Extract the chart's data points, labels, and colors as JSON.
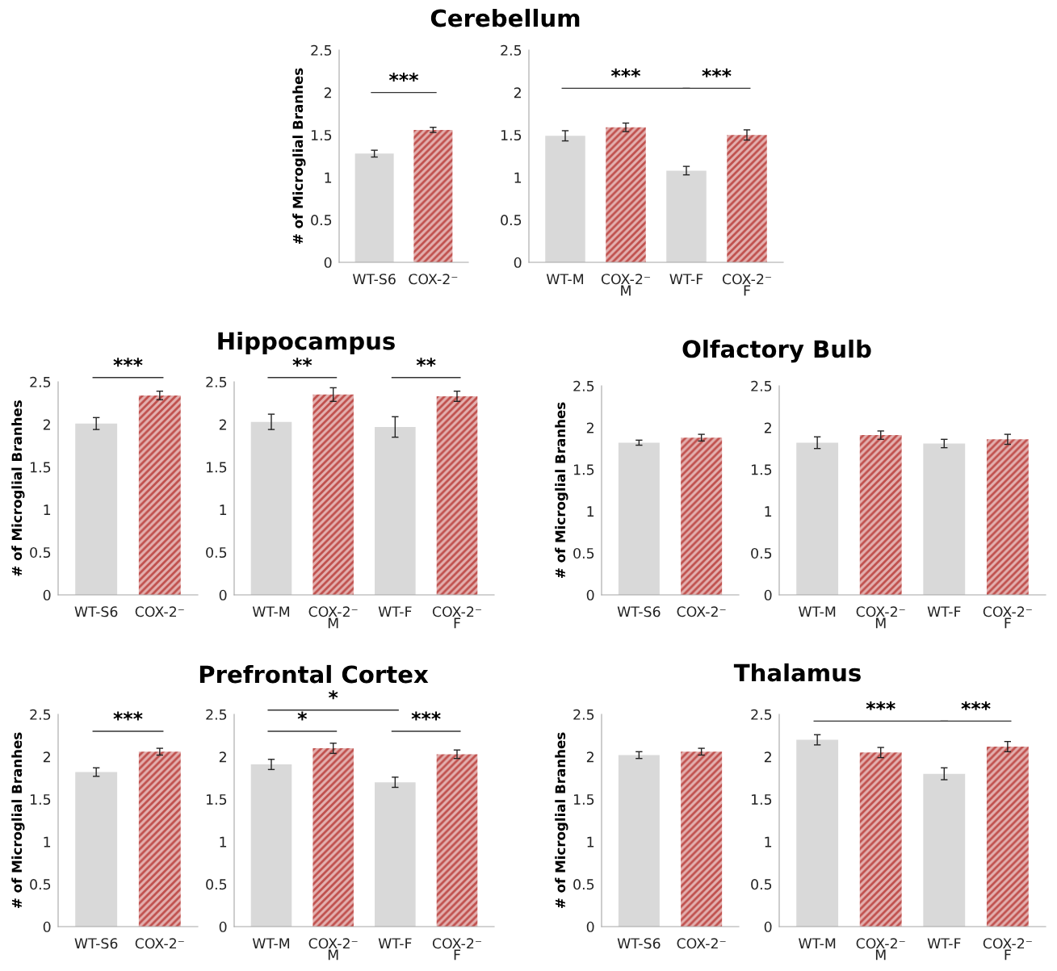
{
  "chart_data": [
    {
      "type": "bar",
      "ylabel": "# of Microglial Branhes",
      "categories": [
        "WT-S6",
        "COX-2⁻"
      ],
      "values": [
        1.28,
        1.56
      ],
      "errors": [
        0.04,
        0.03
      ],
      "colors": [
        "#d9d9d9",
        "#c0504d"
      ],
      "ylim": [
        0,
        2.5
      ],
      "yticks": [
        0,
        0.5,
        1,
        1.5,
        2,
        2.5
      ],
      "grid": false,
      "legend": false,
      "annotations": [
        "***"
      ]
    },
    {
      "type": "bar",
      "title": "Cerebellum",
      "categories": [
        "WT-M",
        "COX-2⁻\nM",
        "WT-F",
        "COX-2⁻\nF"
      ],
      "values": [
        1.49,
        1.59,
        1.08,
        1.5
      ],
      "errors": [
        0.06,
        0.05,
        0.05,
        0.06
      ],
      "colors": [
        "#d9d9d9",
        "#c0504d",
        "#d9d9d9",
        "#c0504d"
      ],
      "ylim": [
        0,
        2.5
      ],
      "yticks": [
        0,
        0.5,
        1,
        1.5,
        2,
        2.5
      ],
      "grid": false,
      "legend": false,
      "annotations": [
        "***",
        "***"
      ]
    },
    {
      "type": "bar",
      "ylabel": "# of Microglial Branhes",
      "categories": [
        "WT-S6",
        "COX-2⁻"
      ],
      "values": [
        2.01,
        2.34
      ],
      "errors": [
        0.07,
        0.05
      ],
      "colors": [
        "#d9d9d9",
        "#c0504d"
      ],
      "ylim": [
        0,
        2.5
      ],
      "yticks": [
        0,
        0.5,
        1,
        1.5,
        2,
        2.5
      ],
      "grid": false,
      "legend": false,
      "annotations": [
        "***"
      ]
    },
    {
      "type": "bar",
      "title": "Hippocampus",
      "categories": [
        "WT-M",
        "COX-2⁻\nM",
        "WT-F",
        "COX-2⁻\nF"
      ],
      "values": [
        2.03,
        2.35,
        1.97,
        2.33
      ],
      "errors": [
        0.09,
        0.08,
        0.12,
        0.06
      ],
      "colors": [
        "#d9d9d9",
        "#c0504d",
        "#d9d9d9",
        "#c0504d"
      ],
      "ylim": [
        0,
        2.5
      ],
      "yticks": [
        0,
        0.5,
        1,
        1.5,
        2,
        2.5
      ],
      "grid": false,
      "legend": false,
      "annotations": [
        "**",
        "**"
      ]
    },
    {
      "type": "bar",
      "ylabel": "# of Microglial Branhes",
      "categories": [
        "WT-S6",
        "COX-2⁻"
      ],
      "values": [
        1.82,
        1.88
      ],
      "errors": [
        0.03,
        0.04
      ],
      "colors": [
        "#d9d9d9",
        "#c0504d"
      ],
      "ylim": [
        0,
        2.5
      ],
      "yticks": [
        0,
        0.5,
        1,
        1.5,
        2,
        2.5
      ],
      "grid": false,
      "legend": false
    },
    {
      "type": "bar",
      "title": "Olfactory Bulb",
      "categories": [
        "WT-M",
        "COX-2⁻\nM",
        "WT-F",
        "COX-2⁻\nF"
      ],
      "values": [
        1.82,
        1.91,
        1.81,
        1.86
      ],
      "errors": [
        0.07,
        0.05,
        0.05,
        0.06
      ],
      "colors": [
        "#d9d9d9",
        "#c0504d",
        "#d9d9d9",
        "#c0504d"
      ],
      "ylim": [
        0,
        2.5
      ],
      "yticks": [
        0,
        0.5,
        1,
        1.5,
        2,
        2.5
      ],
      "grid": false,
      "legend": false
    },
    {
      "type": "bar",
      "ylabel": "# of Microglial Branhes",
      "categories": [
        "WT-S6",
        "COX-2⁻"
      ],
      "values": [
        1.82,
        2.06
      ],
      "errors": [
        0.05,
        0.04
      ],
      "colors": [
        "#d9d9d9",
        "#c0504d"
      ],
      "ylim": [
        0,
        2.5
      ],
      "yticks": [
        0,
        0.5,
        1,
        1.5,
        2,
        2.5
      ],
      "grid": false,
      "legend": false,
      "annotations": [
        "***"
      ]
    },
    {
      "type": "bar",
      "title": "Prefrontal Cortex",
      "categories": [
        "WT-M",
        "COX-2⁻\nM",
        "WT-F",
        "COX-2⁻\nF"
      ],
      "values": [
        1.91,
        2.1,
        1.7,
        2.03
      ],
      "errors": [
        0.06,
        0.06,
        0.06,
        0.05
      ],
      "colors": [
        "#d9d9d9",
        "#c0504d",
        "#d9d9d9",
        "#c0504d"
      ],
      "ylim": [
        0,
        2.5
      ],
      "yticks": [
        0,
        0.5,
        1,
        1.5,
        2,
        2.5
      ],
      "grid": false,
      "legend": false,
      "annotations": [
        "*",
        "*",
        "***"
      ]
    },
    {
      "type": "bar",
      "ylabel": "# of Microglial Branhes",
      "categories": [
        "WT-S6",
        "COX-2⁻"
      ],
      "values": [
        2.02,
        2.06
      ],
      "errors": [
        0.04,
        0.04
      ],
      "colors": [
        "#d9d9d9",
        "#c0504d"
      ],
      "ylim": [
        0,
        2.5
      ],
      "yticks": [
        0,
        0.5,
        1,
        1.5,
        2,
        2.5
      ],
      "grid": false,
      "legend": false
    },
    {
      "type": "bar",
      "title": "Thalamus",
      "categories": [
        "WT-M",
        "COX-2⁻\nM",
        "WT-F",
        "COX-2⁻\nF"
      ],
      "values": [
        2.2,
        2.05,
        1.8,
        2.12
      ],
      "errors": [
        0.06,
        0.06,
        0.07,
        0.06
      ],
      "colors": [
        "#d9d9d9",
        "#c0504d",
        "#d9d9d9",
        "#c0504d"
      ],
      "ylim": [
        0,
        2.5
      ],
      "yticks": [
        0,
        0.5,
        1,
        1.5,
        2,
        2.5
      ],
      "grid": false,
      "legend": false,
      "annotations": [
        "***",
        "***"
      ]
    }
  ]
}
